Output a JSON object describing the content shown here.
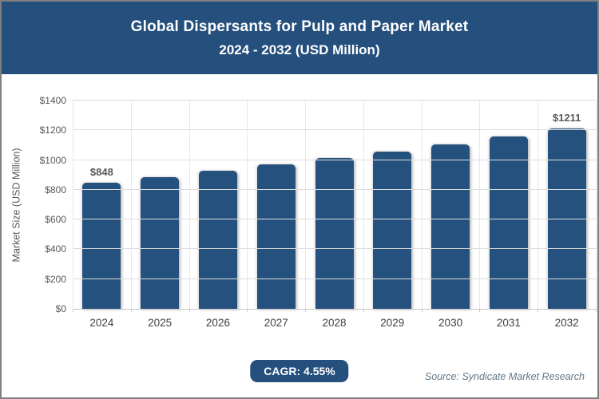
{
  "header": {
    "title": "Global Dispersants for Pulp and Paper Market",
    "subtitle": "2024 - 2032 (USD Million)",
    "bg_color": "#254f7c",
    "text_color": "#ffffff"
  },
  "chart_data": {
    "type": "bar",
    "categories": [
      "2024",
      "2025",
      "2026",
      "2027",
      "2028",
      "2029",
      "2030",
      "2031",
      "2032"
    ],
    "values": [
      848,
      887,
      927,
      969,
      1013,
      1059,
      1107,
      1158,
      1211
    ],
    "value_labels": [
      {
        "index": 0,
        "text": "$848"
      },
      {
        "index": 8,
        "text": "$1211"
      }
    ],
    "title": "Global Dispersants for Pulp and Paper Market 2024 - 2032 (USD Million)",
    "xlabel": "",
    "ylabel": "Market Size (USD Million)",
    "ylim": [
      0,
      1400
    ],
    "ytick_step": 200,
    "ytick_prefix": "$",
    "grid": true,
    "legend": "none",
    "bar_color": "#25517e",
    "gridline_color": "#dcdcdc"
  },
  "footer": {
    "cagr_label": "CAGR: 4.55%",
    "source": "Source: Syndicate Market Research"
  }
}
